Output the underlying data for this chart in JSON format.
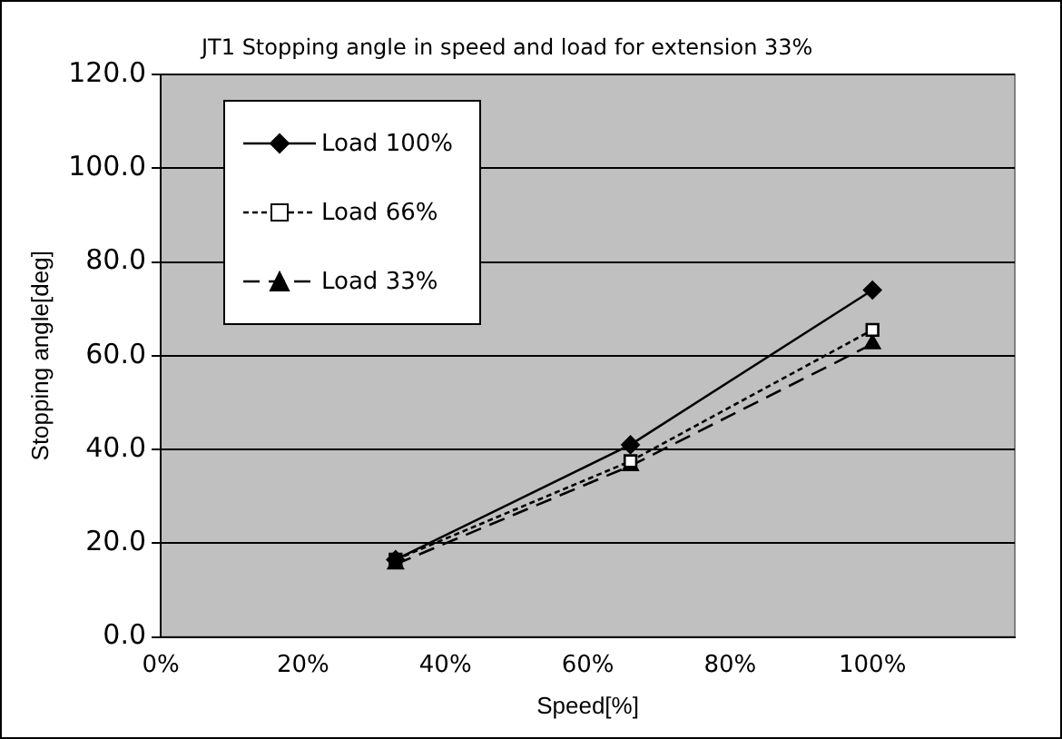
{
  "chart_data": {
    "type": "line",
    "title": "JT1 Stopping angle in speed and load for extension 33%",
    "xlabel": "Speed[%]",
    "ylabel": "Stopping angle[deg]",
    "x": [
      33,
      66,
      100
    ],
    "series": [
      {
        "name": "Load 100%",
        "color": "#000000",
        "values": [
          16.5,
          41,
          74
        ],
        "marker": "diamond",
        "line_style": "solid"
      },
      {
        "name": "Load 66%",
        "color": "#000000",
        "values": [
          16.5,
          37.5,
          65.5
        ],
        "marker": "square",
        "line_style": "dotted"
      },
      {
        "name": "Load 33%",
        "color": "#000000",
        "values": [
          15.5,
          36.5,
          62.5
        ],
        "marker": "triangle",
        "line_style": "dashed"
      }
    ],
    "xlim": [
      0,
      120
    ],
    "xticks": [
      {
        "value": 0,
        "label": "0%"
      },
      {
        "value": 20,
        "label": "20%"
      },
      {
        "value": 40,
        "label": "40%"
      },
      {
        "value": 60,
        "label": "60%"
      },
      {
        "value": 80,
        "label": "80%"
      },
      {
        "value": 100,
        "label": "100%"
      }
    ],
    "ylim": [
      0,
      120
    ],
    "yticks": [
      {
        "value": 0,
        "label": "0.0"
      },
      {
        "value": 20,
        "label": "20.0"
      },
      {
        "value": 40,
        "label": "40.0"
      },
      {
        "value": 60,
        "label": "60.0"
      },
      {
        "value": 80,
        "label": "80.0"
      },
      {
        "value": 100,
        "label": "100.0"
      },
      {
        "value": 120,
        "label": "120.0"
      }
    ],
    "grid": "y",
    "legend": "top left"
  }
}
